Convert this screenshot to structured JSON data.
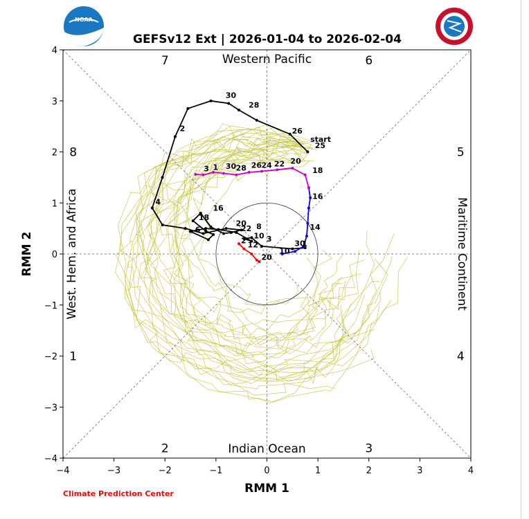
{
  "chart_data": {
    "type": "phase-diagram",
    "title": "GEFSv12 Ext | 2026-01-04 to 2026-02-04",
    "xlabel": "RMM 1",
    "ylabel": "RMM 2",
    "xlim": [
      -4,
      4
    ],
    "ylim": [
      -4,
      4
    ],
    "ticks": [
      "−4",
      "−3",
      "−2",
      "−1",
      "0",
      "1",
      "2",
      "3",
      "4"
    ],
    "unit_circle_radius": 1,
    "regions": {
      "top": "Western Pacific",
      "bottom": "Indian Ocean",
      "left": "West. Hem. and Africa",
      "right": "Maritime Continent"
    },
    "phases": [
      {
        "label": "1",
        "x": -3.8,
        "y": -2
      },
      {
        "label": "2",
        "x": -2,
        "y": -3.8
      },
      {
        "label": "3",
        "x": 2,
        "y": -3.8
      },
      {
        "label": "4",
        "x": 3.8,
        "y": -2
      },
      {
        "label": "5",
        "x": 3.8,
        "y": 2
      },
      {
        "label": "6",
        "x": 2,
        "y": 3.8
      },
      {
        "label": "7",
        "x": -2,
        "y": 3.8
      },
      {
        "label": "8",
        "x": -3.8,
        "y": 2
      }
    ],
    "credit": "Climate Prediction Center",
    "start_label": "start",
    "colors": {
      "observed": "#000000",
      "forecast_week1": "#0000ff",
      "forecast_week2": "#cc00cc",
      "recent": "#ff0000",
      "ensemble": "#c8c84a",
      "credit": "#ff0000",
      "noaa_blue": "#1a78c2",
      "nws_red": "#c8102e"
    },
    "series": [
      {
        "name": "",
        "color": "#000000",
        "x": [
          0.8,
          0.45,
          -0.2,
          -0.55,
          -0.75,
          -1.1,
          -1.55,
          -1.8,
          -2.05,
          -2.25,
          -2.05,
          -1.6,
          -1.25,
          -0.8,
          -0.5,
          -0.7,
          -0.85,
          -1.1,
          -1.3,
          -1.45,
          -1.2,
          -1.05,
          -1.15,
          -1.5,
          -1.2,
          -0.95,
          -0.6,
          -0.3,
          -0.45,
          -0.3,
          -0.1,
          0.5,
          0.75
        ],
        "y": [
          2.0,
          2.35,
          2.62,
          2.82,
          2.95,
          3.0,
          2.85,
          2.3,
          1.5,
          0.9,
          0.57,
          0.5,
          0.4,
          0.5,
          0.47,
          0.42,
          0.4,
          0.53,
          0.8,
          0.65,
          0.45,
          0.38,
          0.28,
          0.44,
          0.5,
          0.48,
          0.42,
          0.25,
          0.3,
          0.32,
          0.15,
          0.1,
          0.12
        ],
        "labels": [
          {
            "text": "25",
            "x": 0.9,
            "y": 2.05
          },
          {
            "text": "26",
            "x": 0.45,
            "y": 2.33
          },
          {
            "text": "28",
            "x": -0.4,
            "y": 2.84
          },
          {
            "text": "30",
            "x": -0.85,
            "y": 3.03
          },
          {
            "text": "2",
            "x": -1.75,
            "y": 2.38
          },
          {
            "text": "4",
            "x": -2.23,
            "y": 0.94
          },
          {
            "text": "6",
            "x": -1.45,
            "y": 0.4
          },
          {
            "text": "16",
            "x": -1.1,
            "y": 0.82
          },
          {
            "text": "18",
            "x": -1.38,
            "y": 0.64
          },
          {
            "text": "20",
            "x": -0.65,
            "y": 0.52
          },
          {
            "text": "22",
            "x": -0.55,
            "y": 0.42
          },
          {
            "text": "8",
            "x": -0.25,
            "y": 0.46
          },
          {
            "text": "10",
            "x": -0.3,
            "y": 0.28
          },
          {
            "text": "3",
            "x": -0.05,
            "y": 0.22
          }
        ]
      },
      {
        "name": "",
        "color": "#ff0000",
        "x": [
          -0.55,
          -0.45,
          -0.3,
          -0.2,
          -0.15
        ],
        "y": [
          0.2,
          0.1,
          0.0,
          -0.12,
          -0.15
        ],
        "labels": [
          {
            "text": "2",
            "x": -0.55,
            "y": 0.18
          },
          {
            "text": "12",
            "x": -0.42,
            "y": 0.1
          },
          {
            "text": "20",
            "x": -0.15,
            "y": -0.14
          }
        ]
      },
      {
        "name": "",
        "color": "#0000ff",
        "x": [
          0.3,
          0.55,
          0.72,
          0.78,
          0.8,
          0.82,
          0.85,
          0.82
        ],
        "y": [
          0.0,
          0.05,
          0.15,
          0.35,
          0.6,
          0.9,
          1.1,
          1.3
        ],
        "labels": [
          {
            "text": "30",
            "x": 0.5,
            "y": 0.13
          },
          {
            "text": "1",
            "x": 0.65,
            "y": 0.12
          },
          {
            "text": "10",
            "x": 0.2,
            "y": -0.02
          },
          {
            "text": "14",
            "x": 0.8,
            "y": 0.45
          },
          {
            "text": "16",
            "x": 0.85,
            "y": 1.05
          }
        ]
      },
      {
        "name": "",
        "color": "#cc00cc",
        "x": [
          0.82,
          0.75,
          0.5,
          0.2,
          -0.1,
          -0.35,
          -0.6,
          -0.85,
          -1.05,
          -1.25,
          -1.4
        ],
        "y": [
          1.3,
          1.55,
          1.68,
          1.65,
          1.62,
          1.6,
          1.55,
          1.58,
          1.6,
          1.55,
          1.56
        ],
        "labels": [
          {
            "text": "18",
            "x": 0.85,
            "y": 1.56
          },
          {
            "text": "20",
            "x": 0.42,
            "y": 1.74
          },
          {
            "text": "22",
            "x": 0.1,
            "y": 1.69
          },
          {
            "text": "24",
            "x": -0.15,
            "y": 1.66
          },
          {
            "text": "26",
            "x": -0.35,
            "y": 1.66
          },
          {
            "text": "28",
            "x": -0.65,
            "y": 1.61
          },
          {
            "text": "30",
            "x": -0.85,
            "y": 1.64
          },
          {
            "text": "1",
            "x": -1.1,
            "y": 1.62
          },
          {
            "text": "3",
            "x": -1.28,
            "y": 1.59
          }
        ]
      }
    ]
  }
}
